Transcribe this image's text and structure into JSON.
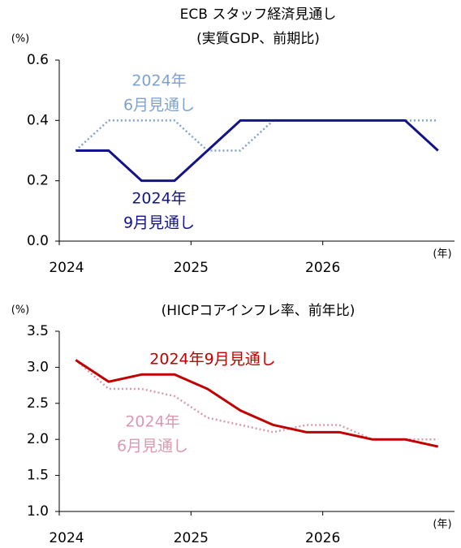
{
  "chart_data": [
    {
      "type": "line",
      "title": "ECB スタッフ経済見通し",
      "subtitle": "(実質GDP、前期比)",
      "y_unit": "(%)",
      "x_unit": "(年)",
      "x": [
        2024.125,
        2024.375,
        2024.625,
        2024.875,
        2025.125,
        2025.375,
        2025.625,
        2025.875,
        2026.125,
        2026.375,
        2026.625,
        2026.875
      ],
      "xlim": [
        2024,
        2027
      ],
      "xticks": [
        2024,
        2025,
        2026
      ],
      "ylim": [
        0,
        0.6
      ],
      "yticks": [
        {
          "value": 0,
          "label": "0.0"
        },
        0.2,
        0.4,
        0.6
      ],
      "series": [
        {
          "label": [
            "2024年",
            "6月見通し"
          ],
          "color": "#7fa2cc",
          "dash": true,
          "values": [
            0.3,
            0.4,
            0.4,
            0.4,
            0.3,
            0.3,
            0.4,
            0.4,
            0.4,
            0.4,
            0.4,
            0.4
          ]
        },
        {
          "label": [
            "2024年",
            "9月見通し"
          ],
          "color": "#14148a",
          "dash": false,
          "values": [
            0.3,
            0.3,
            0.2,
            0.2,
            0.3,
            0.4,
            0.4,
            0.4,
            0.4,
            0.4,
            0.4,
            0.3
          ]
        }
      ]
    },
    {
      "type": "line",
      "title": "(HICPコアインフレ率、前年比)",
      "y_unit": "(%)",
      "x_unit": "(年)",
      "x": [
        2024.125,
        2024.375,
        2024.625,
        2024.875,
        2025.125,
        2025.375,
        2025.625,
        2025.875,
        2026.125,
        2026.375,
        2026.625,
        2026.875
      ],
      "xlim": [
        2024,
        2027
      ],
      "xticks": [
        2024,
        2025,
        2026
      ],
      "ylim": [
        1,
        3.5
      ],
      "yticks": [
        {
          "value": 1,
          "label": "1.0"
        },
        1.5,
        {
          "value": 2,
          "label": "2.0"
        },
        2.5,
        {
          "value": 3,
          "label": "3.0"
        },
        3.5
      ],
      "series": [
        {
          "label": [
            "2024年",
            "6月見通し"
          ],
          "color": "#d99aae",
          "dash": true,
          "values": [
            3.1,
            2.7,
            2.7,
            2.6,
            2.3,
            2.2,
            2.1,
            2.2,
            2.2,
            2.0,
            2.0,
            2.0
          ]
        },
        {
          "label": [
            "2024年9月見通し"
          ],
          "color": "#c00000",
          "dash": false,
          "values": [
            3.1,
            2.8,
            2.9,
            2.9,
            2.7,
            2.4,
            2.2,
            2.1,
            2.1,
            2.0,
            2.0,
            1.9
          ]
        }
      ]
    }
  ]
}
